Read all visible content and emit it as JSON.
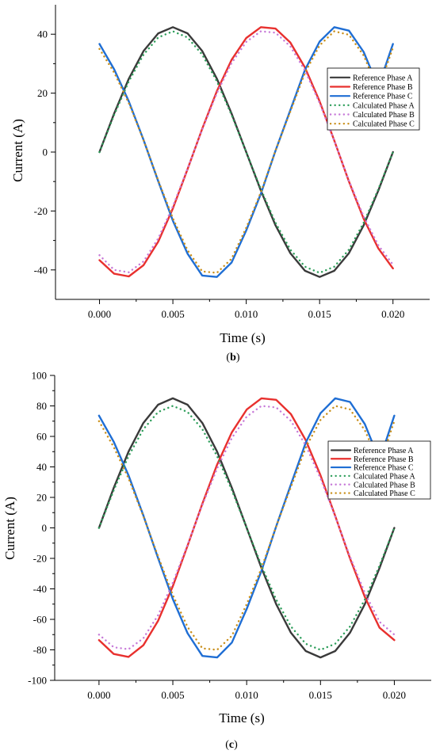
{
  "chart_data": [
    {
      "type": "line",
      "xlabel": "Time (s)",
      "ylabel": "Current (A)",
      "caption_letter": "b",
      "xlim": [
        -0.003,
        0.0225
      ],
      "ylim": [
        -50,
        50
      ],
      "x_ticks": [
        0.0,
        0.005,
        0.01,
        0.015,
        0.02
      ],
      "x_tick_labels": [
        "0.000",
        "0.005",
        "0.010",
        "0.015",
        "0.020"
      ],
      "y_ticks": [
        -40,
        -20,
        0,
        20,
        40
      ],
      "y_tick_labels": [
        "-40",
        "-20",
        "0",
        "20",
        "40"
      ],
      "legend_position": "right",
      "x": [
        0,
        0.001,
        0.002,
        0.003,
        0.004,
        0.005,
        0.006,
        0.007,
        0.008,
        0.009,
        0.01,
        0.011,
        0.012,
        0.013,
        0.014,
        0.015,
        0.016,
        0.017,
        0.018,
        0.019,
        0.02
      ],
      "series": [
        {
          "name": "Reference Phase A",
          "style": "solid",
          "color": "#3a3a3a",
          "values": [
            0,
            13.1,
            24.9,
            34.3,
            40.3,
            42.4,
            40.3,
            34.3,
            24.9,
            13.1,
            0,
            -13.1,
            -24.9,
            -34.3,
            -40.3,
            -42.4,
            -40.3,
            -34.3,
            -24.9,
            -13.1,
            0
          ]
        },
        {
          "name": "Reference Phase B",
          "style": "solid",
          "color": "#e8302e",
          "values": [
            -36.7,
            -41.3,
            -42.2,
            -38.4,
            -30.4,
            -19.1,
            -5.8,
            7.9,
            20.7,
            31.3,
            38.7,
            42.4,
            41.9,
            37.2,
            28.7,
            17.2,
            3.9,
            -10.0,
            -22.6,
            -32.7,
            -39.5
          ]
        },
        {
          "name": "Reference Phase C",
          "style": "solid",
          "color": "#1f6ed4",
          "values": [
            36.7,
            28.1,
            17.2,
            4.1,
            -9.9,
            -23.3,
            -34.5,
            -41.9,
            -42.4,
            -37.5,
            -26.6,
            -14.1,
            0.5,
            14.2,
            27.9,
            37.5,
            42.4,
            41.2,
            34.0,
            22.1,
            36.7
          ]
        },
        {
          "name": "Calculated Phase A",
          "style": "dotted",
          "color": "#2e9e5b",
          "values": [
            0,
            12.6,
            24.0,
            33.1,
            38.9,
            41.0,
            38.9,
            33.1,
            24.0,
            12.6,
            0,
            -12.6,
            -24.0,
            -33.1,
            -38.9,
            -41.0,
            -38.9,
            -33.1,
            -24.0,
            -12.6,
            0
          ]
        },
        {
          "name": "Calculated Phase B",
          "style": "dotted",
          "color": "#c77ad8",
          "values": [
            -35.0,
            -40.0,
            -40.8,
            -37.1,
            -29.3,
            -18.4,
            -5.6,
            7.6,
            20.0,
            30.2,
            37.4,
            41.0,
            40.5,
            35.9,
            27.7,
            16.6,
            3.8,
            -9.7,
            -21.8,
            -31.6,
            -38.2
          ]
        },
        {
          "name": "Calculated Phase C",
          "style": "dotted",
          "color": "#c98f1a",
          "values": [
            35.0,
            27.0,
            16.6,
            4.0,
            -9.6,
            -22.5,
            -33.3,
            -40.5,
            -41.0,
            -36.2,
            -25.7,
            -13.6,
            0.5,
            13.7,
            26.9,
            36.2,
            41.0,
            39.8,
            32.8,
            21.3,
            35.4
          ]
        }
      ]
    },
    {
      "type": "line",
      "xlabel": "Time (s)",
      "ylabel": "Current (A)",
      "caption_letter": "c",
      "xlim": [
        -0.003,
        0.0225
      ],
      "ylim": [
        -100,
        100
      ],
      "x_ticks": [
        0.0,
        0.005,
        0.01,
        0.015,
        0.02
      ],
      "x_tick_labels": [
        "0.000",
        "0.005",
        "0.010",
        "0.015",
        "0.020"
      ],
      "y_ticks": [
        -100,
        -80,
        -60,
        -40,
        -20,
        0,
        20,
        40,
        60,
        80,
        100
      ],
      "y_tick_labels": [
        "-100",
        "-80",
        "-60",
        "-40",
        "-20",
        "0",
        "20",
        "40",
        "60",
        "80",
        "100"
      ],
      "legend_position": "right",
      "x": [
        0,
        0.001,
        0.002,
        0.003,
        0.004,
        0.005,
        0.006,
        0.007,
        0.008,
        0.009,
        0.01,
        0.011,
        0.012,
        0.013,
        0.014,
        0.015,
        0.016,
        0.017,
        0.018,
        0.019,
        0.02
      ],
      "series": [
        {
          "name": "Reference Phase A",
          "style": "solid",
          "color": "#3a3a3a",
          "values": [
            0,
            26.3,
            50.0,
            68.8,
            80.8,
            85.0,
            80.8,
            68.8,
            50.0,
            26.3,
            0,
            -26.3,
            -50.0,
            -68.8,
            -80.8,
            -85.0,
            -80.8,
            -68.8,
            -50.0,
            -26.3,
            0
          ]
        },
        {
          "name": "Reference Phase B",
          "style": "solid",
          "color": "#e8302e",
          "values": [
            -73.6,
            -82.7,
            -84.6,
            -77.0,
            -61.0,
            -38.3,
            -11.7,
            15.9,
            41.5,
            62.7,
            77.6,
            85.0,
            84.0,
            74.6,
            57.5,
            34.5,
            7.8,
            -20.0,
            -45.3,
            -65.5,
            -73.6
          ]
        },
        {
          "name": "Reference Phase C",
          "style": "solid",
          "color": "#1f6ed4",
          "values": [
            73.6,
            56.4,
            34.5,
            8.2,
            -19.8,
            -46.7,
            -69.1,
            -84.0,
            -85.0,
            -75.2,
            -53.2,
            -28.2,
            1.0,
            28.5,
            55.9,
            75.2,
            85.0,
            82.6,
            68.1,
            44.3,
            73.6
          ]
        },
        {
          "name": "Calculated Phase A",
          "style": "dotted",
          "color": "#2e9e5b",
          "values": [
            0,
            24.7,
            47.0,
            64.7,
            76.0,
            80.0,
            76.0,
            64.7,
            47.0,
            24.7,
            0,
            -24.7,
            -47.0,
            -64.7,
            -76.0,
            -80.0,
            -76.0,
            -64.7,
            -47.0,
            -24.7,
            0
          ]
        },
        {
          "name": "Calculated Phase B",
          "style": "dotted",
          "color": "#c77ad8",
          "values": [
            -70.0,
            -78.3,
            -79.6,
            -72.4,
            -57.3,
            -36.0,
            -11.0,
            15.0,
            39.0,
            59.0,
            73.0,
            80.0,
            79.0,
            70.2,
            54.1,
            32.5,
            7.3,
            -18.8,
            -42.6,
            -61.6,
            -70.0
          ]
        },
        {
          "name": "Calculated Phase C",
          "style": "dotted",
          "color": "#c98f1a",
          "values": [
            70.0,
            53.0,
            32.5,
            7.7,
            -18.6,
            -44.0,
            -65.0,
            -79.0,
            -80.0,
            -70.8,
            -50.0,
            -26.5,
            1.0,
            26.8,
            52.6,
            70.8,
            80.0,
            77.7,
            64.1,
            41.7,
            70.0
          ]
        }
      ]
    }
  ]
}
